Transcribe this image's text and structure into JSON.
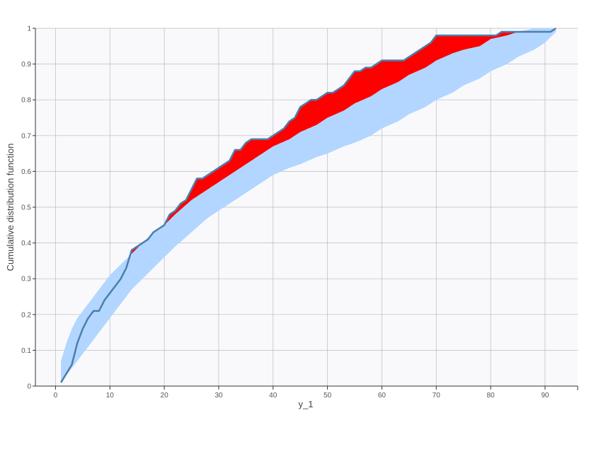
{
  "chart_data": {
    "type": "area",
    "xlabel": "y_1",
    "ylabel": "Cumulative distribution function",
    "xlim": [
      -3.7,
      96
    ],
    "ylim": [
      0,
      1
    ],
    "x_ticks": [
      "0",
      "10",
      "20",
      "30",
      "40",
      "50",
      "60",
      "70",
      "80",
      "90"
    ],
    "y_ticks": [
      "0",
      "0.1",
      "0.2",
      "0.3",
      "0.4",
      "0.5",
      "0.6",
      "0.7",
      "0.8",
      "0.9",
      "1"
    ],
    "x_tick_values": [
      0,
      10,
      20,
      30,
      40,
      50,
      60,
      70,
      80,
      90
    ],
    "y_tick_values": [
      0,
      0.1,
      0.2,
      0.3,
      0.4,
      0.5,
      0.6,
      0.7,
      0.8,
      0.9,
      1
    ],
    "grid": true,
    "colors": {
      "plot_bg": "#f9f9fc",
      "grid": "#b9b9c0",
      "band": "#b2d6ff",
      "exceed": "#ff0000",
      "line": "#4a7fad",
      "axis": "#333333"
    },
    "band": {
      "x": [
        1,
        2,
        3,
        4,
        5,
        6,
        8,
        10,
        12,
        14,
        16,
        18,
        20,
        22,
        25,
        28,
        30,
        33,
        35,
        38,
        40,
        43,
        45,
        48,
        50,
        53,
        55,
        58,
        60,
        63,
        65,
        68,
        70,
        73,
        75,
        78,
        80,
        83,
        85,
        88,
        90,
        92
      ],
      "lower": [
        0.01,
        0.03,
        0.05,
        0.07,
        0.09,
        0.11,
        0.15,
        0.19,
        0.23,
        0.27,
        0.3,
        0.33,
        0.36,
        0.39,
        0.43,
        0.47,
        0.49,
        0.52,
        0.54,
        0.57,
        0.59,
        0.61,
        0.62,
        0.64,
        0.65,
        0.67,
        0.68,
        0.7,
        0.72,
        0.74,
        0.76,
        0.78,
        0.8,
        0.82,
        0.84,
        0.86,
        0.88,
        0.9,
        0.92,
        0.94,
        0.96,
        0.99
      ],
      "upper": [
        0.07,
        0.12,
        0.16,
        0.19,
        0.21,
        0.23,
        0.27,
        0.31,
        0.34,
        0.37,
        0.4,
        0.43,
        0.45,
        0.48,
        0.52,
        0.55,
        0.57,
        0.6,
        0.62,
        0.65,
        0.67,
        0.69,
        0.71,
        0.73,
        0.75,
        0.77,
        0.79,
        0.81,
        0.83,
        0.85,
        0.87,
        0.89,
        0.91,
        0.93,
        0.94,
        0.95,
        0.97,
        0.98,
        0.99,
        1,
        1,
        1
      ]
    },
    "series": [
      {
        "x": [
          1,
          3,
          4,
          5,
          6,
          7,
          8,
          9,
          10,
          11,
          12,
          13,
          14,
          15,
          16,
          17,
          18,
          19,
          20,
          21,
          22,
          23,
          24,
          25,
          26,
          27,
          28,
          29,
          30,
          31,
          32,
          33,
          34,
          35,
          36,
          37,
          38,
          39,
          40,
          41,
          42,
          43,
          44,
          45,
          46,
          47,
          48,
          49,
          50,
          51,
          52,
          53,
          54,
          55,
          56,
          57,
          58,
          59,
          60,
          61,
          62,
          63,
          64,
          65,
          66,
          67,
          68,
          69,
          70,
          72,
          74,
          76,
          78,
          80,
          81,
          82,
          84,
          86,
          88,
          90,
          91,
          92
        ],
        "values": [
          0.01,
          0.06,
          0.12,
          0.16,
          0.19,
          0.21,
          0.21,
          0.24,
          0.26,
          0.28,
          0.3,
          0.33,
          0.38,
          0.39,
          0.4,
          0.41,
          0.43,
          0.44,
          0.45,
          0.48,
          0.49,
          0.51,
          0.52,
          0.55,
          0.58,
          0.58,
          0.59,
          0.6,
          0.61,
          0.62,
          0.63,
          0.66,
          0.66,
          0.68,
          0.69,
          0.69,
          0.69,
          0.69,
          0.7,
          0.71,
          0.72,
          0.74,
          0.75,
          0.78,
          0.79,
          0.8,
          0.8,
          0.81,
          0.82,
          0.82,
          0.83,
          0.84,
          0.86,
          0.88,
          0.88,
          0.89,
          0.89,
          0.9,
          0.91,
          0.91,
          0.91,
          0.91,
          0.91,
          0.92,
          0.93,
          0.94,
          0.95,
          0.96,
          0.98,
          0.98,
          0.98,
          0.98,
          0.98,
          0.98,
          0.98,
          0.99,
          0.99,
          0.99,
          0.99,
          0.99,
          0.99,
          1
        ]
      }
    ]
  }
}
